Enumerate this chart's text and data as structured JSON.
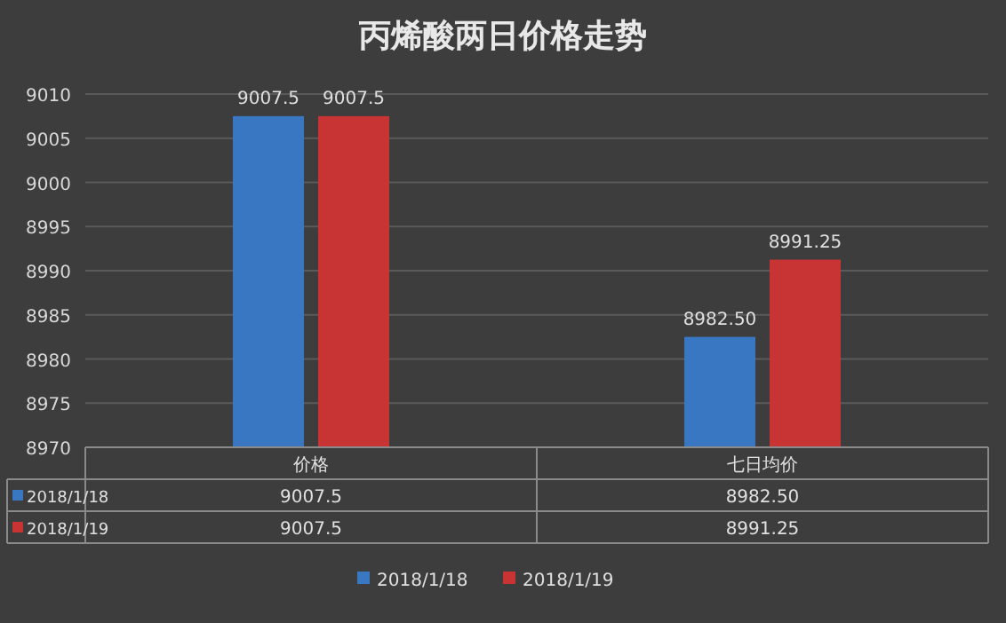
{
  "chart_data": {
    "type": "bar",
    "title": "丙烯酸两日价格走势",
    "categories": [
      "价格",
      "七日均价"
    ],
    "series": [
      {
        "name": "2018/1/18",
        "color": "#3a77c2",
        "values": [
          9007.5,
          8982.5
        ],
        "value_labels": [
          "9007.5",
          "8982.50"
        ]
      },
      {
        "name": "2018/1/19",
        "color": "#c83434",
        "values": [
          9007.5,
          8991.25
        ],
        "value_labels": [
          "9007.5",
          "8991.25"
        ]
      }
    ],
    "ylim": [
      8970,
      9010
    ],
    "yticks": [
      8970,
      8975,
      8980,
      8985,
      8990,
      8995,
      9000,
      9005,
      9010
    ],
    "grid": "y",
    "legend": "bottom"
  }
}
